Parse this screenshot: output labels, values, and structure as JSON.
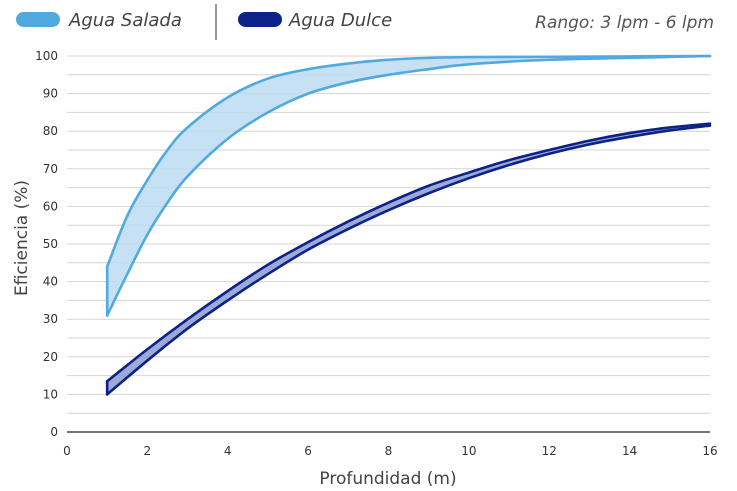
{
  "chart_data": {
    "type": "area",
    "legend": {
      "placement": "top-left",
      "items": [
        {
          "label": "Agua Salada",
          "color": "#52a9df"
        },
        {
          "label": "Agua Dulce",
          "color": "#0c2286"
        }
      ]
    },
    "range_note": "Rango: 3 lpm - 6 lpm",
    "xlabel": "Profundidad (m)",
    "ylabel": "Eficiencia (%)",
    "xlim": [
      0,
      16
    ],
    "ylim": [
      0,
      100
    ],
    "xticks": [
      "0",
      "2",
      "4",
      "6",
      "8",
      "10",
      "12",
      "14",
      "16"
    ],
    "yticks": [
      "0",
      "10",
      "20",
      "30",
      "40",
      "50",
      "60",
      "70",
      "80",
      "90",
      "100"
    ],
    "grid": "horizontal",
    "series": [
      {
        "name": "Agua Salada",
        "color": "#52a9df",
        "fill": "#bcdcf2",
        "x": [
          1,
          1.5,
          2,
          2.5,
          3,
          4,
          5,
          6,
          7,
          8,
          9,
          10,
          12,
          14,
          16
        ],
        "upper": [
          44,
          57.5,
          67,
          75,
          81,
          89,
          94,
          96.5,
          98,
          99,
          99.5,
          99.7,
          99.8,
          99.9,
          100
        ],
        "lower": [
          31,
          42,
          52.5,
          61,
          68,
          78,
          85,
          90,
          93,
          95,
          96.5,
          97.8,
          99,
          99.5,
          100
        ]
      },
      {
        "name": "Agua Dulce",
        "color": "#0c2286",
        "fill": "#8c9bd0",
        "x": [
          1,
          2,
          3,
          4,
          5,
          6,
          7,
          8,
          9,
          10,
          11,
          12,
          13,
          14,
          15,
          16
        ],
        "upper": [
          13.5,
          22,
          30,
          37.5,
          44.5,
          50.5,
          56,
          61,
          65.5,
          69,
          72.3,
          75,
          77.5,
          79.5,
          81,
          82
        ],
        "lower": [
          10,
          19,
          27.5,
          35,
          42,
          48.5,
          54,
          59,
          63.5,
          67.5,
          71,
          74,
          76.5,
          78.5,
          80.2,
          81.5
        ]
      }
    ]
  }
}
